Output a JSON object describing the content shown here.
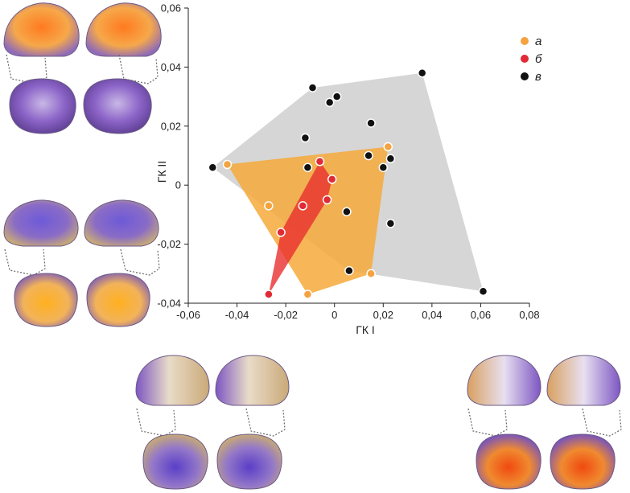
{
  "chart_data": {
    "type": "scatter",
    "xlabel": "ГК I",
    "ylabel": "ГК II",
    "xlim": [
      -0.06,
      0.08
    ],
    "ylim": [
      -0.04,
      0.06
    ],
    "x_ticks": [
      "-0,06",
      "-0,04",
      "-0,02",
      "0",
      "0,02",
      "0,04",
      "0,06",
      "0,08"
    ],
    "y_ticks": [
      "-0,04",
      "-0,02",
      "0",
      "0,02",
      "0,04",
      "0,06"
    ],
    "legend_position": "top-right",
    "series": [
      {
        "name": "а",
        "color": "#f4a340",
        "hull_color": "#f6a93a",
        "points": [
          [
            -0.044,
            0.007
          ],
          [
            -0.027,
            -0.007
          ],
          [
            -0.011,
            -0.037
          ],
          [
            0.015,
            -0.03
          ],
          [
            0.022,
            0.013
          ]
        ]
      },
      {
        "name": "б",
        "color": "#e02a35",
        "hull_color": "#e8302e",
        "points": [
          [
            -0.027,
            -0.037
          ],
          [
            -0.022,
            -0.016
          ],
          [
            -0.013,
            -0.007
          ],
          [
            -0.006,
            0.008
          ],
          [
            -0.003,
            -0.005
          ],
          [
            -0.001,
            0.002
          ]
        ]
      },
      {
        "name": "в",
        "color": "#111111",
        "hull_color": "#cfcfcf",
        "points": [
          [
            -0.05,
            0.006
          ],
          [
            -0.011,
            0.006
          ],
          [
            -0.012,
            0.016
          ],
          [
            -0.009,
            0.033
          ],
          [
            -0.002,
            0.028
          ],
          [
            0.001,
            0.03
          ],
          [
            0.015,
            0.021
          ],
          [
            0.014,
            0.01
          ],
          [
            0.02,
            0.006
          ],
          [
            0.023,
            0.009
          ],
          [
            0.023,
            -0.013
          ],
          [
            0.005,
            -0.009
          ],
          [
            0.006,
            -0.029
          ],
          [
            0.036,
            0.038
          ],
          [
            0.061,
            -0.036
          ]
        ]
      }
    ]
  },
  "icons": {
    "skull_panels": [
      "skull-lateral-icon",
      "skull-frontal-icon",
      "skull-dotted-outline-icon"
    ]
  },
  "colors": {
    "purple": "#7b55c2",
    "orange": "#f5a623",
    "red_orange": "#ee5a22",
    "bone": "#c9b48d"
  }
}
